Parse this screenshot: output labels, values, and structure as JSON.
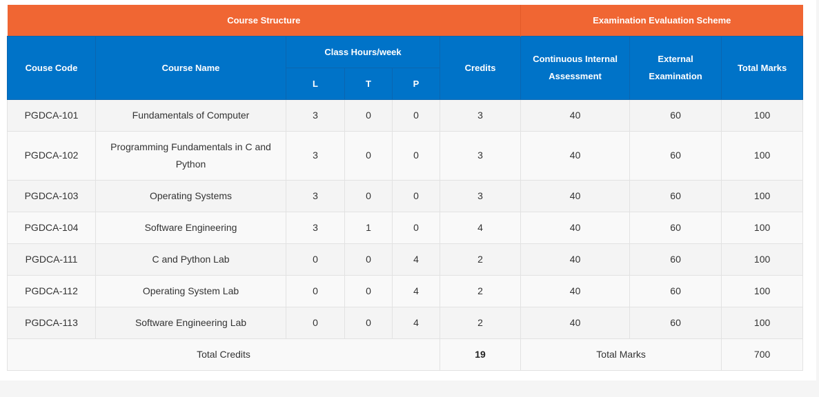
{
  "groups": {
    "course_structure": "Course Structure",
    "exam_scheme": "Examination Evaluation Scheme"
  },
  "headers": {
    "course_code": "Couse Code",
    "course_name": "Course Name",
    "class_hours": "Class Hours/week",
    "l": "L",
    "t": "T",
    "p": "P",
    "credits": "Credits",
    "cia": "Continuous Internal Assessment",
    "external": "External Examination",
    "total_marks": "Total Marks"
  },
  "rows": [
    {
      "code": "PGDCA-101",
      "name": "Fundamentals of Computer",
      "l": "3",
      "t": "0",
      "p": "0",
      "credits": "3",
      "cia": "40",
      "ext": "60",
      "total": "100"
    },
    {
      "code": "PGDCA-102",
      "name": "Programming Fundamentals in C and Python",
      "l": "3",
      "t": "0",
      "p": "0",
      "credits": "3",
      "cia": "40",
      "ext": "60",
      "total": "100"
    },
    {
      "code": "PGDCA-103",
      "name": "Operating Systems",
      "l": "3",
      "t": "0",
      "p": "0",
      "credits": "3",
      "cia": "40",
      "ext": "60",
      "total": "100"
    },
    {
      "code": "PGDCA-104",
      "name": "Software Engineering",
      "l": "3",
      "t": "1",
      "p": "0",
      "credits": "4",
      "cia": "40",
      "ext": "60",
      "total": "100"
    },
    {
      "code": "PGDCA-111",
      "name": "C and Python Lab",
      "l": "0",
      "t": "0",
      "p": "4",
      "credits": "2",
      "cia": "40",
      "ext": "60",
      "total": "100"
    },
    {
      "code": "PGDCA-112",
      "name": "Operating System Lab",
      "l": "0",
      "t": "0",
      "p": "4",
      "credits": "2",
      "cia": "40",
      "ext": "60",
      "total": "100"
    },
    {
      "code": "PGDCA-113",
      "name": "Software Engineering Lab",
      "l": "0",
      "t": "0",
      "p": "4",
      "credits": "2",
      "cia": "40",
      "ext": "60",
      "total": "100"
    }
  ],
  "totals": {
    "credits_label": "Total Credits",
    "credits_value": "19",
    "marks_label": "Total Marks",
    "marks_value": "700"
  },
  "colors": {
    "group_header": "#f06633",
    "column_header": "#0073c8"
  }
}
